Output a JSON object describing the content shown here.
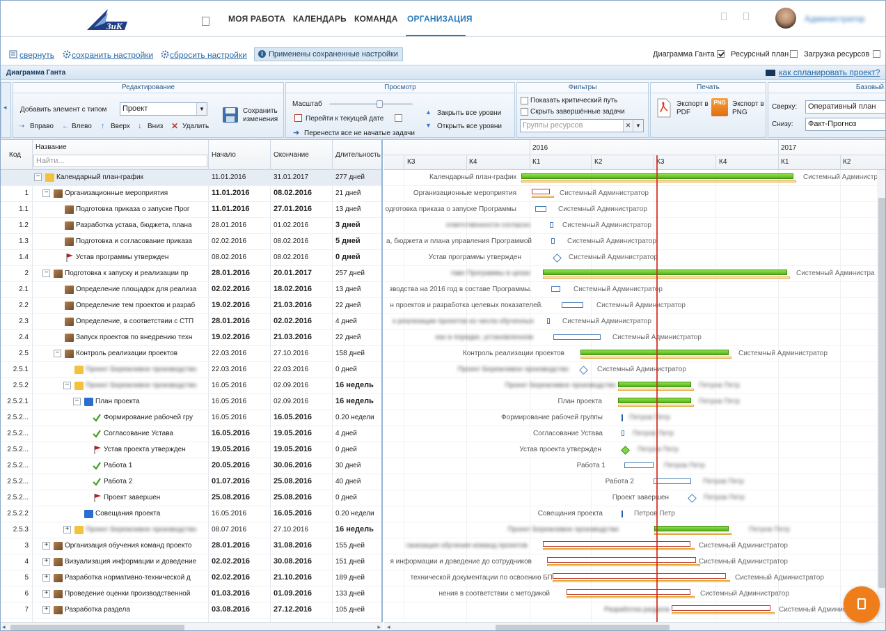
{
  "nav": {
    "items": [
      "МОЯ РАБОТА",
      "КАЛЕНДАРЬ",
      "КОМАНДА",
      "ОРГАНИЗАЦИЯ"
    ],
    "active": "ОРГАНИЗАЦИЯ",
    "user": "Администратор"
  },
  "settings_bar": {
    "collapse": "свернуть",
    "save": "сохранить настройки",
    "reset": "сбросить настройки",
    "applied": "Применены сохраненные настройки"
  },
  "view": {
    "gantt": "Диаграмма Ганта",
    "gantt_checked": true,
    "resource_plan": "Ресурсный план",
    "resource_plan_checked": false,
    "resource_load": "Загрузка ресурсов",
    "resource_load_checked": false
  },
  "gantt_title": "Диаграмма Ганта",
  "howto": "как спланировать проект?",
  "ribbon": {
    "edit": {
      "title": "Редактирование",
      "add_label": "Добавить элемент с типом",
      "type_value": "Проект",
      "save": "Сохранить изменения",
      "right": "Вправо",
      "left": "Влево",
      "up": "Вверх",
      "down": "Вниз",
      "delete": "Удалить"
    },
    "view": {
      "title": "Просмотр",
      "scale": "Масштаб",
      "goto_today": "Перейти к текущей дате",
      "move_not_started": "Перенести все не начатые задачи",
      "collapse_all": "Закрыть все уровни",
      "expand_all": "Открыть все уровни"
    },
    "filters": {
      "title": "Фильтры",
      "critical": "Показать критический путь",
      "hide_done": "Скрыть завершённые задачи",
      "resource_groups_placeholder": "Группы ресурсов"
    },
    "print": {
      "title": "Печать",
      "pdf": "Экспорт в PDF",
      "png": "Экспорт в PNG",
      "png_badge": "PNG"
    },
    "baseline": {
      "title": "Базовый",
      "top_label": "Сверху:",
      "top_value": "Оперативный план",
      "bottom_label": "Снизу:",
      "bottom_value": "Факт-Прогноз"
    }
  },
  "grid": {
    "headers": {
      "code": "Код",
      "name": "Название",
      "start": "Начало",
      "end": "Окончание",
      "duration": "Длительность"
    },
    "search_placeholder": "Найти...",
    "rows": [
      {
        "code": "",
        "name": "Календарный план-график",
        "start": "11.01.2016",
        "end": "31.01.2017",
        "dur": "277 дней",
        "lvl": 0,
        "exp": "−",
        "icon": "folder"
      },
      {
        "code": "1",
        "name": "Организационные мероприятия",
        "start": "11.01.2016",
        "end": "08.02.2016",
        "dur": "21 дней",
        "lvl": 1,
        "exp": "−",
        "icon": "box",
        "bold": true
      },
      {
        "code": "1.1",
        "name": "Подготовка приказа о запуске Прог",
        "start": "11.01.2016",
        "end": "27.01.2016",
        "dur": "13 дней",
        "lvl": 2,
        "icon": "box",
        "bold": true
      },
      {
        "code": "1.2",
        "name": "Разработка устава, бюджета, плана",
        "start": "28.01.2016",
        "end": "01.02.2016",
        "dur": "3 дней",
        "lvl": 2,
        "icon": "box",
        "bolddur": true
      },
      {
        "code": "1.3",
        "name": "Подготовка и согласование приказа",
        "start": "02.02.2016",
        "end": "08.02.2016",
        "dur": "5 дней",
        "lvl": 2,
        "icon": "box",
        "bolddur": true
      },
      {
        "code": "1.4",
        "name": "Устав программы утвержден",
        "start": "08.02.2016",
        "end": "08.02.2016",
        "dur": "0 дней",
        "lvl": 2,
        "icon": "flag",
        "bolddur": true
      },
      {
        "code": "2",
        "name": "Подготовка к запуску и реализации пр",
        "start": "28.01.2016",
        "end": "20.01.2017",
        "dur": "257 дней",
        "lvl": 1,
        "exp": "−",
        "icon": "box",
        "bold": true
      },
      {
        "code": "2.1",
        "name": "Определение площадок для реализа",
        "start": "02.02.2016",
        "end": "18.02.2016",
        "dur": "13 дней",
        "lvl": 2,
        "icon": "box",
        "bold": true
      },
      {
        "code": "2.2",
        "name": "Определение тем проектов и разраб",
        "start": "19.02.2016",
        "end": "21.03.2016",
        "dur": "22 дней",
        "lvl": 2,
        "icon": "box",
        "bold": true
      },
      {
        "code": "2.3",
        "name": "Определение, в соответствии с СТП",
        "start": "28.01.2016",
        "end": "02.02.2016",
        "dur": "4 дней",
        "lvl": 2,
        "icon": "box",
        "bold": true
      },
      {
        "code": "2.4",
        "name": "Запуск проектов по внедрению техн",
        "start": "19.02.2016",
        "end": "21.03.2016",
        "dur": "22 дней",
        "lvl": 2,
        "icon": "box",
        "bold": true
      },
      {
        "code": "2.5",
        "name": "Контроль реализации проектов",
        "start": "22.03.2016",
        "end": "27.10.2016",
        "dur": "158 дней",
        "lvl": 2,
        "exp": "−",
        "icon": "box"
      },
      {
        "code": "2.5.1",
        "name": "Проект Бережливое производство",
        "start": "22.03.2016",
        "end": "22.03.2016",
        "dur": "0 дней",
        "lvl": 3,
        "icon": "prj",
        "blur": true
      },
      {
        "code": "2.5.2",
        "name": "Проект Бережливое производство",
        "start": "16.05.2016",
        "end": "02.09.2016",
        "dur": "16 недель",
        "lvl": 3,
        "exp": "−",
        "icon": "prj",
        "blur": true,
        "bolddur": true
      },
      {
        "code": "2.5.2.1",
        "name": "План проекта",
        "start": "16.05.2016",
        "end": "02.09.2016",
        "dur": "16 недель",
        "lvl": 4,
        "exp": "−",
        "icon": "blue",
        "bolddur": true
      },
      {
        "code": "2.5.2...",
        "name": "Формирование рабочей гру",
        "start": "16.05.2016",
        "end": "16.05.2016",
        "dur": "0.20 недели",
        "lvl": 5,
        "icon": "check",
        "boldend": true
      },
      {
        "code": "2.5.2...",
        "name": "Согласование Устава",
        "start": "16.05.2016",
        "end": "19.05.2016",
        "dur": "4 дней",
        "lvl": 5,
        "icon": "check",
        "bold": true
      },
      {
        "code": "2.5.2...",
        "name": "Устав проекта утвержден",
        "start": "19.05.2016",
        "end": "19.05.2016",
        "dur": "0 дней",
        "lvl": 5,
        "icon": "flag",
        "bold": true
      },
      {
        "code": "2.5.2...",
        "name": "Работа 1",
        "start": "20.05.2016",
        "end": "30.06.2016",
        "dur": "30 дней",
        "lvl": 5,
        "icon": "check",
        "bold": true
      },
      {
        "code": "2.5.2...",
        "name": "Работа 2",
        "start": "01.07.2016",
        "end": "25.08.2016",
        "dur": "40 дней",
        "lvl": 5,
        "icon": "check",
        "bold": true
      },
      {
        "code": "2.5.2...",
        "name": "Проект завершен",
        "start": "25.08.2016",
        "end": "25.08.2016",
        "dur": "0 дней",
        "lvl": 5,
        "icon": "flag",
        "bold": true
      },
      {
        "code": "2.5.2.2",
        "name": "Совещания проекта",
        "start": "16.05.2016",
        "end": "16.05.2016",
        "dur": "0.20 недели",
        "lvl": 4,
        "icon": "blue",
        "boldend": true
      },
      {
        "code": "2.5.3",
        "name": "Проект Бережливое производство",
        "start": "08.07.2016",
        "end": "27.10.2016",
        "dur": "16 недель",
        "lvl": 3,
        "exp": "+",
        "icon": "prj",
        "blur": true,
        "bolddur": true
      },
      {
        "code": "3",
        "name": "Организация обучения команд проекто",
        "start": "28.01.2016",
        "end": "31.08.2016",
        "dur": "155 дней",
        "lvl": 1,
        "exp": "+",
        "icon": "box",
        "bold": true
      },
      {
        "code": "4",
        "name": "Визуализация информации и доведение",
        "start": "02.02.2016",
        "end": "30.08.2016",
        "dur": "151 дней",
        "lvl": 1,
        "exp": "+",
        "icon": "box",
        "bold": true
      },
      {
        "code": "5",
        "name": "Разработка нормативно-технической д",
        "start": "02.02.2016",
        "end": "21.10.2016",
        "dur": "189 дней",
        "lvl": 1,
        "exp": "+",
        "icon": "box",
        "bold": true
      },
      {
        "code": "6",
        "name": "Проведение оценки производственной",
        "start": "01.03.2016",
        "end": "01.09.2016",
        "dur": "133 дней",
        "lvl": 1,
        "exp": "+",
        "icon": "box",
        "bold": true
      },
      {
        "code": "7",
        "name": "Разработка раздела",
        "start": "03.08.2016",
        "end": "27.12.2016",
        "dur": "105 дней",
        "lvl": 1,
        "exp": "+",
        "icon": "box",
        "bold": true
      }
    ]
  },
  "timeline": {
    "years": [
      "2016",
      "2017"
    ],
    "quarters": [
      "К3",
      "К4",
      "К1",
      "К2",
      "К3",
      "К4",
      "К1",
      "К2"
    ]
  },
  "chart_rows": [
    {
      "label": "Календарный план-график",
      "assignee": "Системный Администратор"
    },
    {
      "label": "Организационные мероприятия",
      "assignee": "Системный Администратор"
    },
    {
      "label": "одготовка приказа о запуске Программы",
      "assignee": "Системный Администратор"
    },
    {
      "label": "ответственности согласно",
      "assignee": "Системный Администратор"
    },
    {
      "label": "а, бюджета и плана управления Программой",
      "assignee": "Системный Администратор"
    },
    {
      "label": "Устав программы утвержден",
      "assignee": "Системный Администратор"
    },
    {
      "label": "таве Программы в цехах",
      "assignee": "Системный Администра"
    },
    {
      "label": "зводства на 2016 год в составе Программы.",
      "assignee": "Системный Администратор"
    },
    {
      "label": "н проектов и разработка целевых показателей.",
      "assignee": "Системный Администратор"
    },
    {
      "label": "к реализации проектов из числа обученных",
      "assignee": "Системный Администратор"
    },
    {
      "label": "ках в порядке, установленном",
      "assignee": "Системный Администратор"
    },
    {
      "label": "Контроль реализации проектов",
      "assignee": "Системный Администратор"
    },
    {
      "label": "Проект Бережливое производство",
      "assignee": "Системный Администратор"
    },
    {
      "label": "Проект Бережливое производство",
      "assignee": "Петров Петр"
    },
    {
      "label": "План проекта",
      "assignee": "Петров Петр"
    },
    {
      "label": "Формирование рабочей группы",
      "assignee": "Петров Петр"
    },
    {
      "label": "Согласование Устава",
      "assignee": "Петров Петр"
    },
    {
      "label": "Устав проекта утвержден",
      "assignee": "Петров Петр"
    },
    {
      "label": "Работа 1",
      "assignee": "Петров Петр"
    },
    {
      "label": "Работа 2",
      "assignee": "Петров Петр"
    },
    {
      "label": "Проект завершен",
      "assignee": "Петров Петр"
    },
    {
      "label": "Совещания проекта",
      "assignee": "Петров Петр"
    },
    {
      "label": "Проект Бережливое производство",
      "assignee": "Петров Петр"
    },
    {
      "label": "ганизация обучения команд проектов",
      "assignee": "Системный Администратор"
    },
    {
      "label": "я информации и доведение до сотрудников",
      "assignee": "Системный Администратор"
    },
    {
      "label": "технической документации по освоению БП",
      "assignee": "Системный Администратор"
    },
    {
      "label": "нения в соответствии с методикой",
      "assignee": "Системный Администратор"
    },
    {
      "label": "Разработка раздела",
      "assignee": "Системный Администратор"
    }
  ]
}
